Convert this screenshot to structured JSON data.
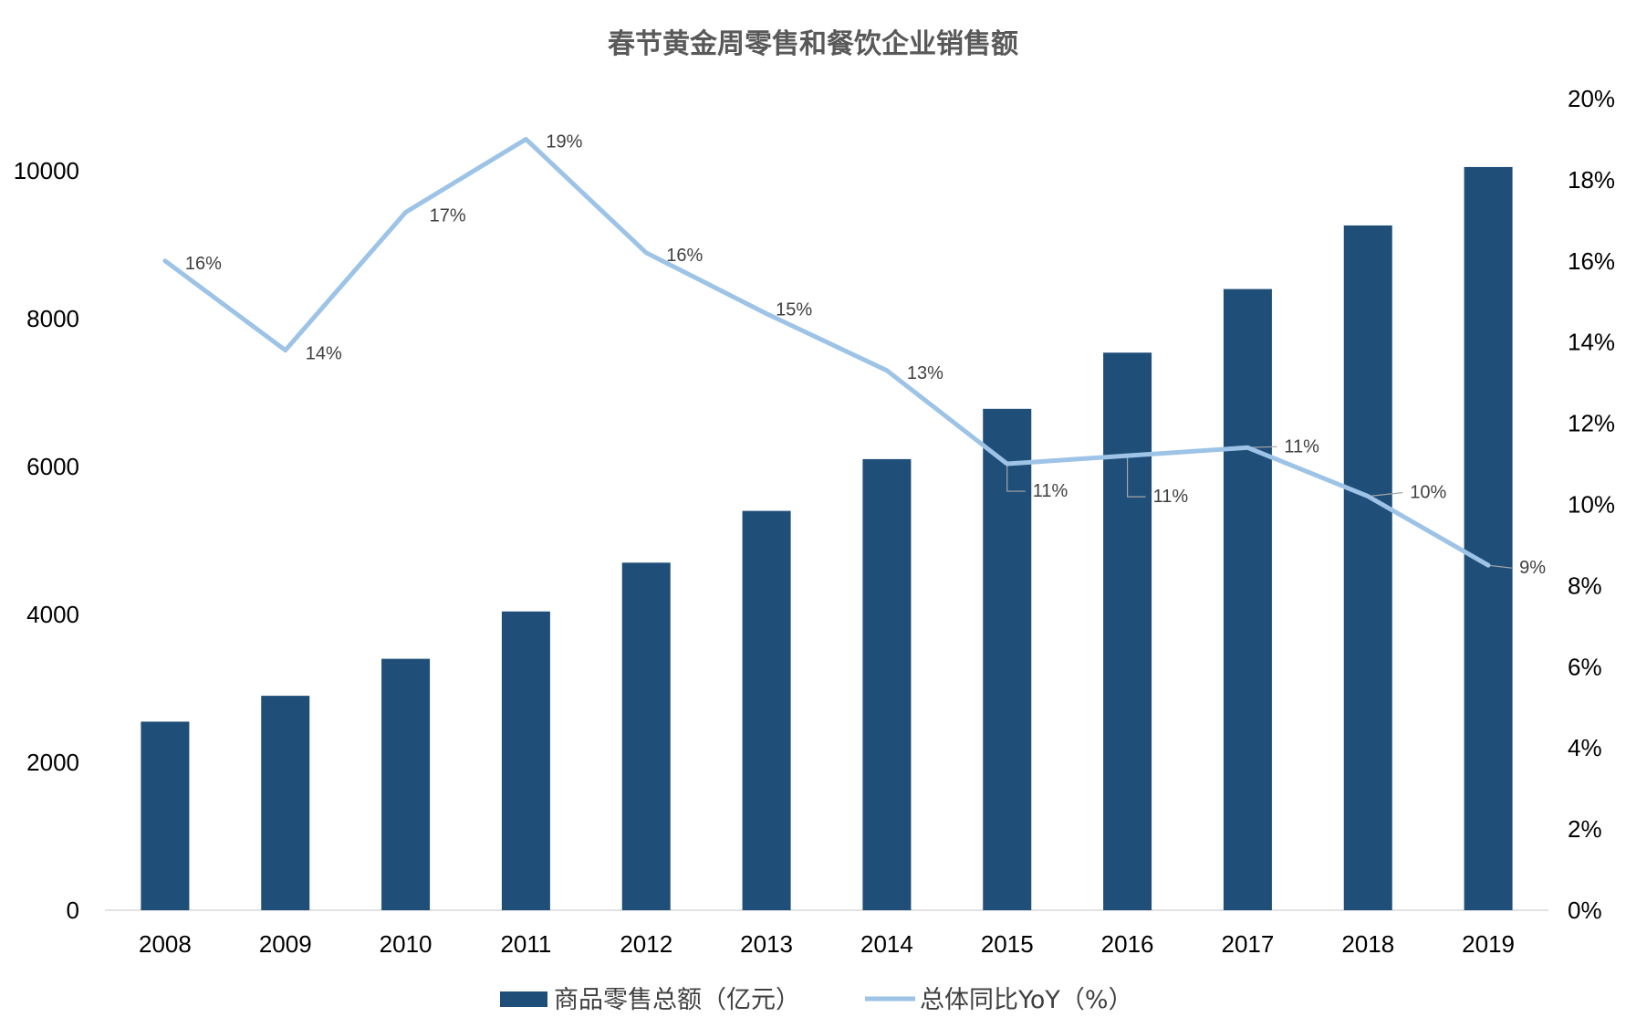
{
  "chart_data": {
    "type": "bar+line",
    "title": "春节黄金周零售和餐饮企业销售额",
    "categories": [
      "2008",
      "2009",
      "2010",
      "2011",
      "2012",
      "2013",
      "2014",
      "2015",
      "2016",
      "2017",
      "2018",
      "2019"
    ],
    "series": [
      {
        "name": "商品零售总额（亿元）",
        "type": "bar",
        "axis": "left",
        "color": "#1F4E79",
        "values": [
          2550,
          2900,
          3400,
          4040,
          4700,
          5400,
          6100,
          6780,
          7540,
          8400,
          9260,
          10050
        ]
      },
      {
        "name": "总体同比YoY（%）",
        "type": "line",
        "axis": "right",
        "color": "#9DC3E6",
        "values": [
          16.0,
          13.8,
          17.2,
          19.0,
          16.2,
          14.7,
          13.3,
          11.0,
          11.2,
          11.4,
          10.2,
          8.5
        ],
        "labels": [
          "16%",
          "14%",
          "17%",
          "19%",
          "16%",
          "15%",
          "13%",
          "11%",
          "11%",
          "11%",
          "10%",
          "9%"
        ]
      }
    ],
    "y_left": {
      "min": 0,
      "max": 11000,
      "ticks": [
        "0",
        "2000",
        "4000",
        "6000",
        "8000",
        "10000"
      ]
    },
    "y_right": {
      "min": 0,
      "max": 20,
      "ticks": [
        "0%",
        "2%",
        "4%",
        "6%",
        "8%",
        "10%",
        "12%",
        "14%",
        "16%",
        "18%",
        "20%"
      ]
    },
    "grid": false,
    "legend_position": "bottom"
  }
}
